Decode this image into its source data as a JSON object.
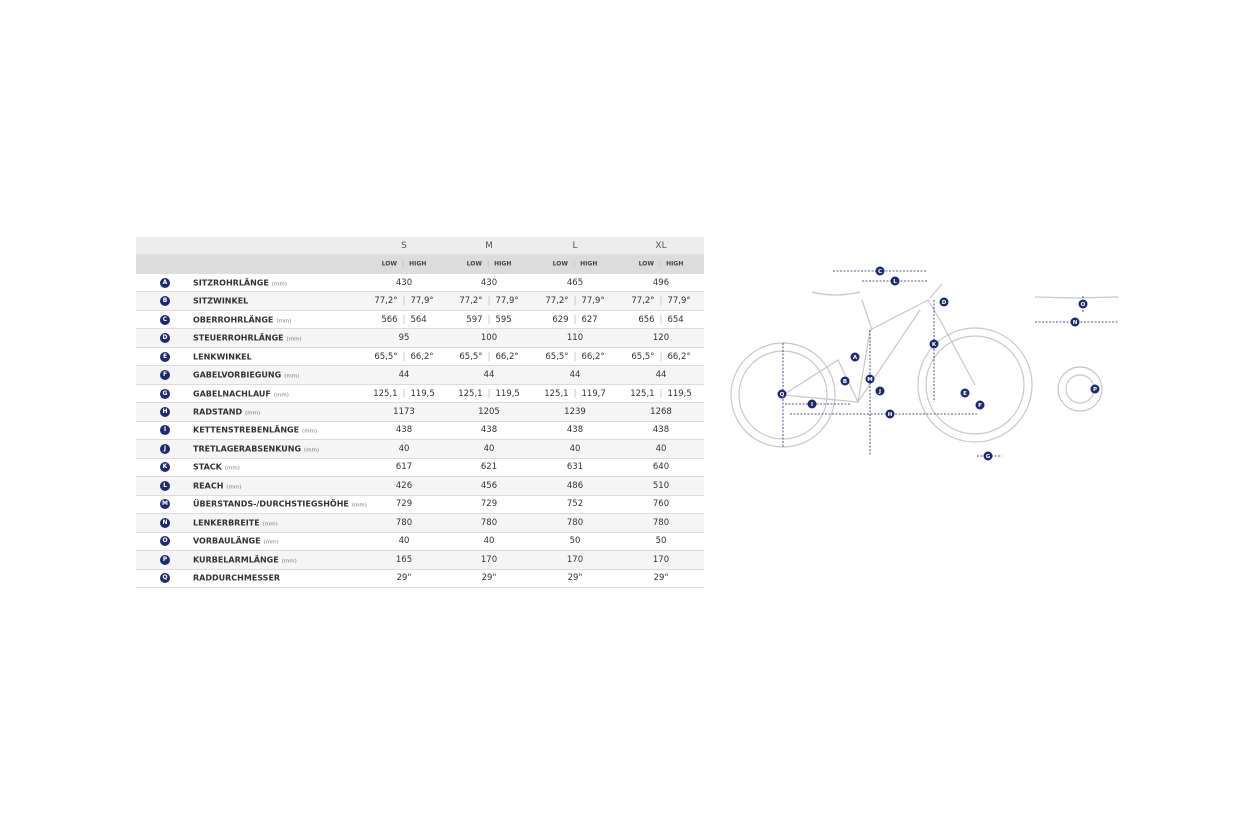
{
  "table": {
    "sizes": [
      "S",
      "M",
      "L",
      "XL"
    ],
    "mode_labels": [
      "LOW",
      "HIGH"
    ],
    "rows": [
      {
        "letter": "A",
        "name": "SITZROHRLÄNGE",
        "unit": "(mm)",
        "values": [
          [
            "430"
          ],
          [
            "430"
          ],
          [
            "465"
          ],
          [
            "496"
          ]
        ]
      },
      {
        "letter": "B",
        "name": "SITZWINKEL",
        "values": [
          [
            "77,2°",
            "77,9°"
          ],
          [
            "77,2°",
            "77,9°"
          ],
          [
            "77,2°",
            "77,9°"
          ],
          [
            "77,2°",
            "77,9°"
          ]
        ]
      },
      {
        "letter": "C",
        "name": "OBERROHRLÄNGE",
        "unit": "(mm)",
        "values": [
          [
            "566",
            "564"
          ],
          [
            "597",
            "595"
          ],
          [
            "629",
            "627"
          ],
          [
            "656",
            "654"
          ]
        ]
      },
      {
        "letter": "D",
        "name": "STEUERROHRLÄNGE",
        "unit": "(mm)",
        "values": [
          [
            "95"
          ],
          [
            "100"
          ],
          [
            "110"
          ],
          [
            "120"
          ]
        ]
      },
      {
        "letter": "E",
        "name": "LENKWINKEL",
        "values": [
          [
            "65,5°",
            "66,2°"
          ],
          [
            "65,5°",
            "66,2°"
          ],
          [
            "65,5°",
            "66,2°"
          ],
          [
            "65,5°",
            "66,2°"
          ]
        ]
      },
      {
        "letter": "F",
        "name": "GABELVORBIEGUNG",
        "unit": "(mm)",
        "values": [
          [
            "44"
          ],
          [
            "44"
          ],
          [
            "44"
          ],
          [
            "44"
          ]
        ]
      },
      {
        "letter": "G",
        "name": "GABELNACHLAUF",
        "unit": "(mm)",
        "values": [
          [
            "125,1",
            "119,5"
          ],
          [
            "125,1",
            "119,5"
          ],
          [
            "125,1",
            "119,7"
          ],
          [
            "125,1",
            "119,5"
          ]
        ]
      },
      {
        "letter": "H",
        "name": "RADSTAND",
        "unit": "(mm)",
        "values": [
          [
            "1173"
          ],
          [
            "1205"
          ],
          [
            "1239"
          ],
          [
            "1268"
          ]
        ]
      },
      {
        "letter": "I",
        "name": "KETTENSTREBENLÄNGE",
        "unit": "(mm)",
        "values": [
          [
            "438"
          ],
          [
            "438"
          ],
          [
            "438"
          ],
          [
            "438"
          ]
        ]
      },
      {
        "letter": "J",
        "name": "TRETLAGERABSENKUNG",
        "unit": "(mm)",
        "values": [
          [
            "40"
          ],
          [
            "40"
          ],
          [
            "40"
          ],
          [
            "40"
          ]
        ]
      },
      {
        "letter": "K",
        "name": "STACK",
        "unit": "(mm)",
        "values": [
          [
            "617"
          ],
          [
            "621"
          ],
          [
            "631"
          ],
          [
            "640"
          ]
        ]
      },
      {
        "letter": "L",
        "name": "REACH",
        "unit": "(mm)",
        "values": [
          [
            "426"
          ],
          [
            "456"
          ],
          [
            "486"
          ],
          [
            "510"
          ]
        ]
      },
      {
        "letter": "M",
        "name": "ÜBERSTANDS-/DURCHSTIEGSHÖHE",
        "unit": "(mm)",
        "values": [
          [
            "729"
          ],
          [
            "729"
          ],
          [
            "752"
          ],
          [
            "760"
          ]
        ]
      },
      {
        "letter": "N",
        "name": "LENKERBREITE",
        "unit": "(mm)",
        "values": [
          [
            "780"
          ],
          [
            "780"
          ],
          [
            "780"
          ],
          [
            "780"
          ]
        ]
      },
      {
        "letter": "O",
        "name": "VORBAULÄNGE",
        "unit": "(mm)",
        "values": [
          [
            "40"
          ],
          [
            "40"
          ],
          [
            "50"
          ],
          [
            "50"
          ]
        ]
      },
      {
        "letter": "P",
        "name": "KURBELARMLÄNGE",
        "unit": "(mm)",
        "values": [
          [
            "165"
          ],
          [
            "170"
          ],
          [
            "170"
          ],
          [
            "170"
          ]
        ]
      },
      {
        "letter": "Q",
        "name": "RADDURCHMESSER",
        "values": [
          [
            "29\""
          ],
          [
            "29\""
          ],
          [
            "29\""
          ],
          [
            "29\""
          ]
        ]
      }
    ]
  }
}
